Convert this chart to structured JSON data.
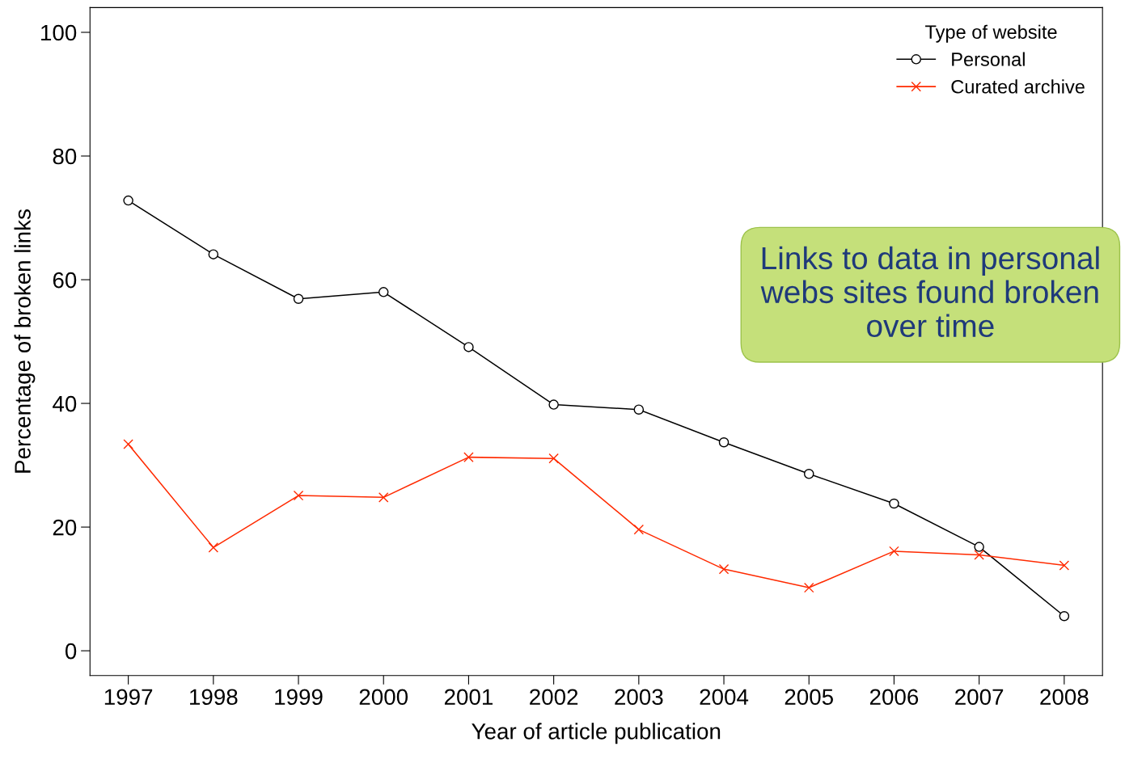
{
  "chart_data": {
    "type": "line",
    "xlabel": "Year of article publication",
    "ylabel": "Percentage of broken links",
    "x": [
      1997,
      1998,
      1999,
      2000,
      2001,
      2002,
      2003,
      2004,
      2005,
      2006,
      2007,
      2008
    ],
    "series": [
      {
        "name": "Personal",
        "color": "#000000",
        "marker": "circle",
        "values": [
          72.8,
          64.1,
          56.9,
          58.0,
          49.1,
          39.8,
          39.0,
          33.7,
          28.6,
          23.8,
          16.8,
          5.6
        ]
      },
      {
        "name": "Curated archive",
        "color": "#ff2a00",
        "marker": "cross",
        "values": [
          33.4,
          16.7,
          25.1,
          24.8,
          31.3,
          31.1,
          19.6,
          13.2,
          10.2,
          16.1,
          15.5,
          13.8
        ]
      }
    ],
    "xlim": [
      1996.55,
      2008.45
    ],
    "ylim": [
      -4,
      104
    ],
    "xticks": [
      1997,
      1998,
      1999,
      2000,
      2001,
      2002,
      2003,
      2004,
      2005,
      2006,
      2007,
      2008
    ],
    "yticks": [
      0,
      20,
      40,
      60,
      80,
      100
    ],
    "legend": "top right",
    "legend_title": "Type of website",
    "grid": false,
    "line_style": "solid",
    "annotations": [
      "Links to data in personal webs sites found broken over time"
    ]
  }
}
